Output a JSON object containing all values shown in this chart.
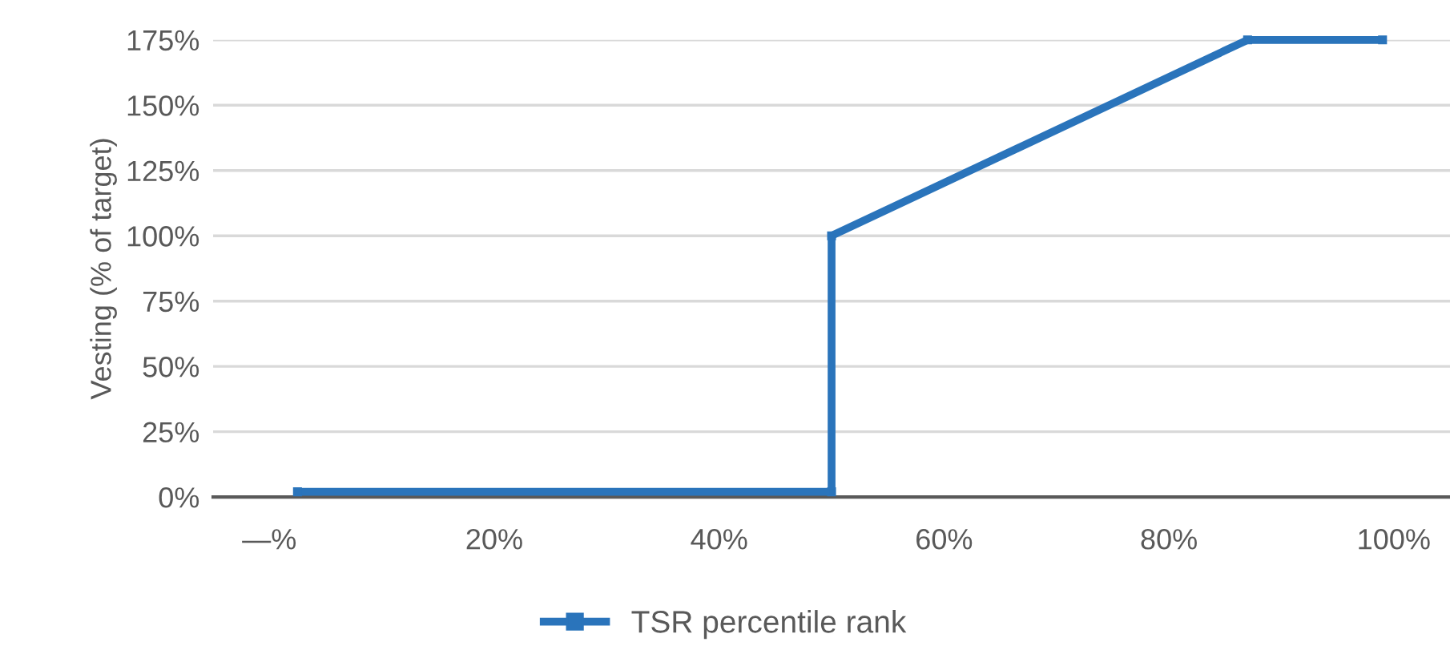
{
  "chart_data": {
    "type": "line",
    "ylabel": "Vesting (% of target)",
    "series": [
      {
        "name": "TSR percentile rank",
        "color": "#2a74bb",
        "x": [
          2.5,
          50,
          50,
          87,
          99
        ],
        "values": [
          2,
          2,
          100,
          175,
          175
        ]
      }
    ],
    "xlim": [
      -5,
      105
    ],
    "xticks": [
      {
        "value": 0,
        "label": "—%"
      },
      {
        "value": 20,
        "label": "20%"
      },
      {
        "value": 40,
        "label": "40%"
      },
      {
        "value": 60,
        "label": "60%"
      },
      {
        "value": 80,
        "label": "80%"
      },
      {
        "value": 100,
        "label": "100%"
      }
    ],
    "ylim": [
      0,
      175
    ],
    "yticks": [
      {
        "value": 0,
        "label": "0%"
      },
      {
        "value": 25,
        "label": "25%"
      },
      {
        "value": 50,
        "label": "50%"
      },
      {
        "value": 75,
        "label": "75%"
      },
      {
        "value": 100,
        "label": "100%"
      },
      {
        "value": 125,
        "label": "125%"
      },
      {
        "value": 150,
        "label": "150%"
      },
      {
        "value": 175,
        "label": "175%"
      }
    ],
    "grid": "y",
    "legend": "bottom",
    "marker": "square",
    "line_style": "solid"
  }
}
